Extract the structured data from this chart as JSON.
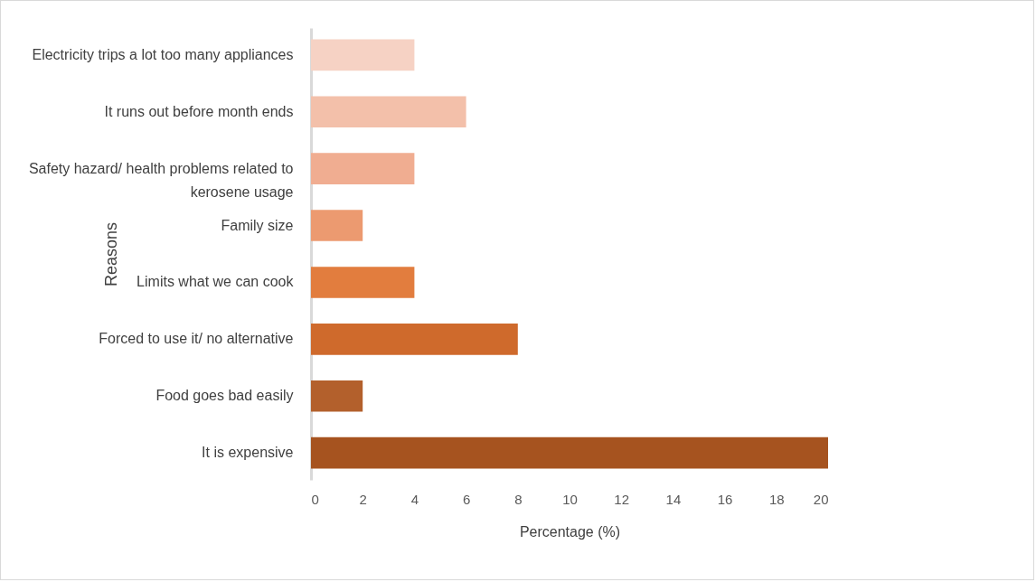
{
  "chart_data": {
    "type": "bar",
    "orientation": "horizontal",
    "xlabel": "Percentage (%)",
    "ylabel": "Reasons",
    "categories": [
      "Electricity trips a lot too many appliances",
      "It runs out before month ends",
      "Safety hazard/ health problems related to kerosene usage",
      "Family size",
      "Limits what we can cook",
      "Forced to use it/ no alternative",
      "Food goes bad easily",
      "It is expensive"
    ],
    "values": [
      4,
      6,
      4,
      2,
      4,
      8,
      2,
      20
    ],
    "colors": [
      "#f6d2c4",
      "#f3c0aa",
      "#f0ad91",
      "#ec9a70",
      "#e27d3e",
      "#cf6a2c",
      "#b3602c",
      "#a6531f"
    ],
    "xlim": [
      0,
      20
    ],
    "xticks": [
      0,
      2,
      4,
      6,
      8,
      10,
      12,
      14,
      16,
      18,
      20
    ],
    "grid": false
  }
}
